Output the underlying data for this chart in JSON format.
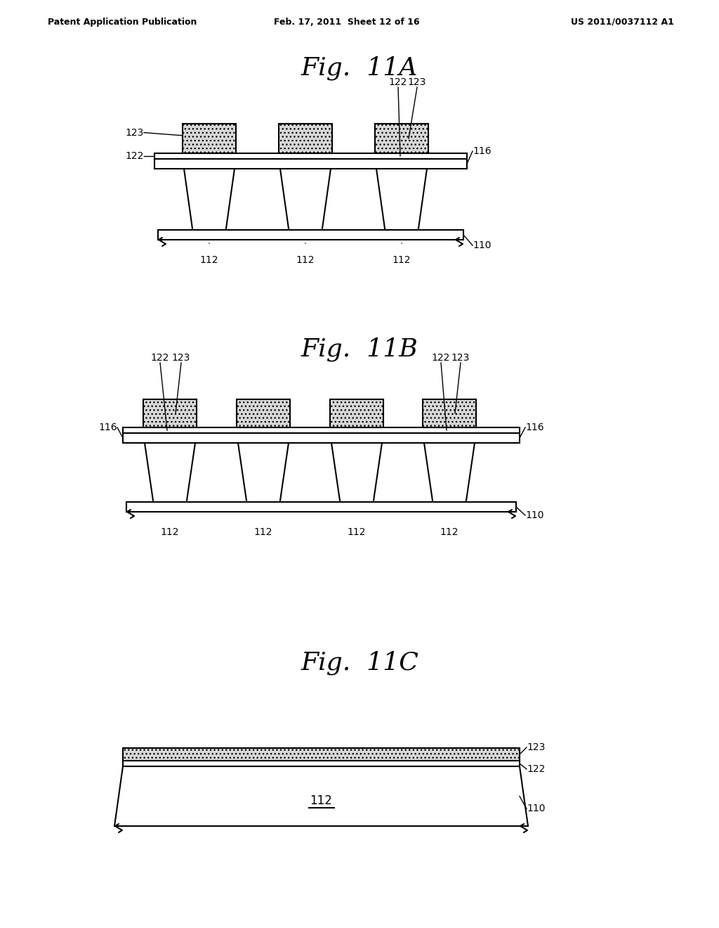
{
  "header_left": "Patent Application Publication",
  "header_mid": "Feb. 17, 2011  Sheet 12 of 16",
  "header_right": "US 2011/0037112 A1",
  "fig_titles": [
    "Fig.  11A",
    "Fig.  11B",
    "Fig.  11C"
  ],
  "bg_color": "#ffffff",
  "line_color": "#000000",
  "fig_title_fontsize": 26,
  "label_fontsize": 10,
  "header_fontsize": 9
}
